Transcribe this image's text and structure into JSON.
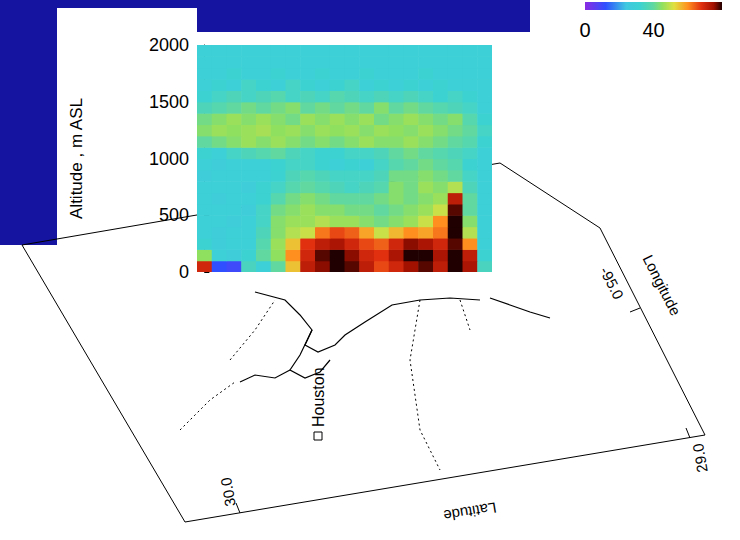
{
  "chart_data": {
    "type": "heatmap",
    "ylabel": "Altitude , m ASL",
    "ylim": [
      0,
      2000
    ],
    "yticks": [
      0,
      500,
      1000,
      1500,
      2000
    ],
    "tick_labels": "y",
    "grid": false,
    "y": [
      50,
      150,
      250,
      350,
      450,
      550,
      650,
      750,
      850,
      950,
      1050,
      1150,
      1250,
      1350,
      1450,
      1550,
      1650,
      1750,
      1850,
      1950
    ],
    "cells": [
      [
        70,
        12,
        10,
        35,
        30,
        40,
        55,
        72,
        76,
        80,
        78,
        72,
        66,
        70,
        75,
        78,
        72,
        80,
        74,
        35
      ],
      [
        45,
        30,
        28,
        32,
        40,
        45,
        60,
        70,
        78,
        80,
        76,
        70,
        68,
        74,
        80,
        80,
        74,
        80,
        72,
        32
      ],
      [
        32,
        28,
        30,
        30,
        38,
        46,
        55,
        68,
        72,
        74,
        70,
        66,
        64,
        70,
        76,
        74,
        70,
        78,
        60,
        30
      ],
      [
        30,
        28,
        30,
        30,
        36,
        44,
        48,
        50,
        62,
        66,
        64,
        58,
        50,
        56,
        60,
        58,
        62,
        80,
        48,
        30
      ],
      [
        30,
        30,
        28,
        30,
        34,
        44,
        46,
        46,
        48,
        46,
        46,
        44,
        42,
        44,
        46,
        50,
        60,
        80,
        44,
        30
      ],
      [
        30,
        30,
        30,
        28,
        34,
        42,
        44,
        46,
        44,
        44,
        42,
        42,
        40,
        42,
        44,
        46,
        50,
        78,
        40,
        30
      ],
      [
        30,
        28,
        30,
        30,
        32,
        38,
        42,
        44,
        42,
        40,
        40,
        40,
        42,
        44,
        42,
        44,
        46,
        72,
        40,
        30
      ],
      [
        30,
        30,
        30,
        28,
        32,
        34,
        38,
        40,
        38,
        36,
        34,
        36,
        38,
        44,
        42,
        46,
        44,
        48,
        36,
        30
      ],
      [
        28,
        30,
        30,
        30,
        30,
        32,
        36,
        38,
        36,
        34,
        34,
        34,
        36,
        42,
        42,
        44,
        42,
        40,
        34,
        30
      ],
      [
        30,
        28,
        30,
        30,
        30,
        32,
        34,
        34,
        32,
        30,
        32,
        30,
        34,
        38,
        40,
        42,
        40,
        38,
        32,
        30
      ],
      [
        32,
        30,
        34,
        36,
        38,
        40,
        36,
        34,
        32,
        32,
        34,
        34,
        36,
        40,
        42,
        40,
        38,
        36,
        34,
        30
      ],
      [
        40,
        42,
        44,
        46,
        44,
        46,
        44,
        42,
        44,
        42,
        44,
        46,
        44,
        44,
        46,
        44,
        42,
        40,
        38,
        32
      ],
      [
        44,
        46,
        45,
        46,
        47,
        45,
        46,
        44,
        46,
        45,
        46,
        44,
        46,
        45,
        44,
        46,
        44,
        42,
        40,
        34
      ],
      [
        42,
        44,
        46,
        44,
        46,
        44,
        42,
        46,
        44,
        46,
        44,
        46,
        42,
        44,
        46,
        44,
        42,
        44,
        38,
        32
      ],
      [
        36,
        38,
        40,
        42,
        40,
        42,
        44,
        40,
        42,
        40,
        42,
        40,
        44,
        40,
        42,
        40,
        38,
        36,
        34,
        30
      ],
      [
        32,
        34,
        36,
        34,
        36,
        38,
        34,
        36,
        34,
        38,
        36,
        34,
        36,
        34,
        36,
        34,
        32,
        34,
        32,
        30
      ],
      [
        30,
        32,
        30,
        34,
        32,
        30,
        34,
        32,
        30,
        32,
        34,
        30,
        32,
        30,
        32,
        30,
        32,
        30,
        30,
        30
      ],
      [
        30,
        30,
        32,
        30,
        30,
        32,
        30,
        30,
        32,
        30,
        30,
        32,
        30,
        30,
        30,
        32,
        30,
        30,
        30,
        30
      ],
      [
        30,
        30,
        30,
        30,
        30,
        30,
        30,
        30,
        30,
        30,
        30,
        30,
        30,
        30,
        30,
        30,
        30,
        30,
        30,
        30
      ],
      [
        30,
        30,
        30,
        30,
        30,
        30,
        30,
        30,
        30,
        30,
        30,
        30,
        30,
        30,
        30,
        30,
        30,
        30,
        30,
        30
      ]
    ],
    "colorbar_range": [
      0,
      80
    ],
    "colorbar_ticks": [
      0,
      40
    ],
    "annotations": [
      "Houston",
      "Latitude",
      "Longitude",
      "30.0",
      "29.0",
      "-95.0"
    ]
  }
}
